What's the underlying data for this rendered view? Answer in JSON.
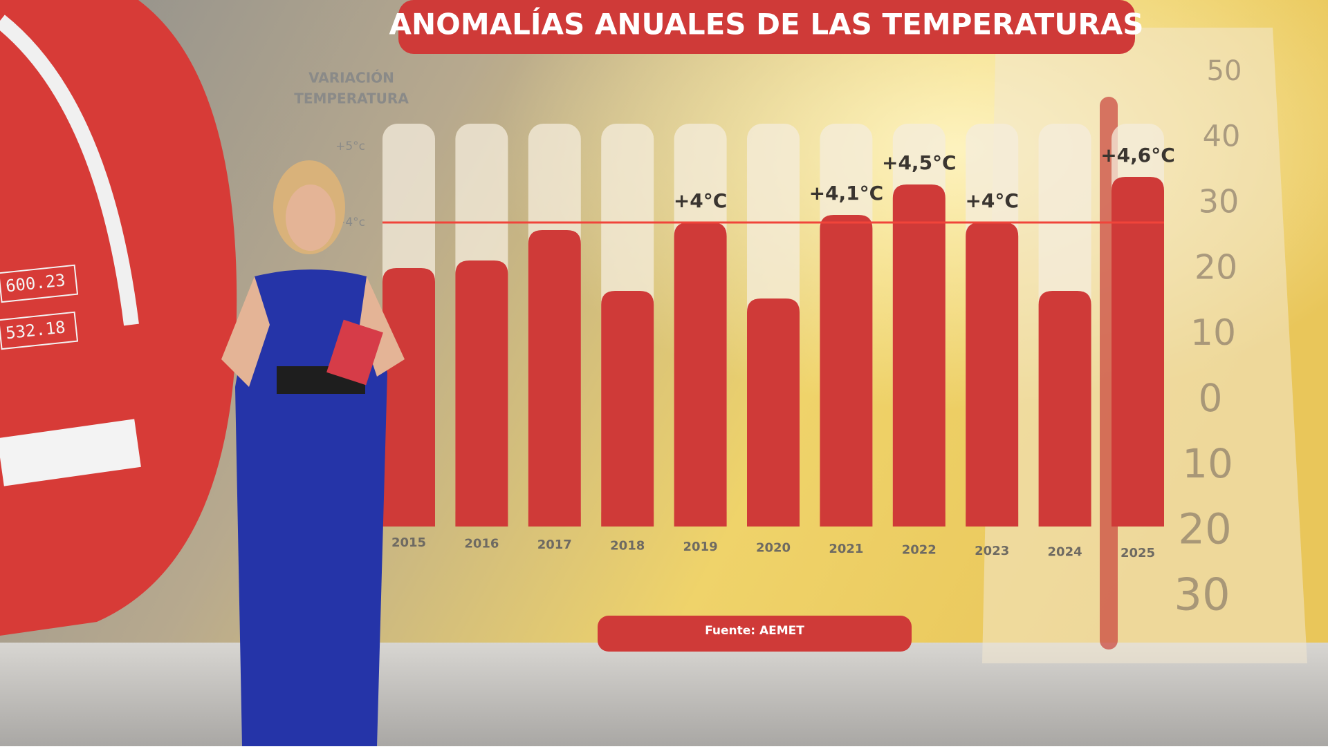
{
  "chart_data": {
    "type": "bar",
    "title": "ANOMALÍAS ANUALES DE LAS TEMPERATURAS",
    "y_label": [
      "VARIACIÓN",
      "TEMPERATURA"
    ],
    "source": "Fuente: AEMET",
    "categories": [
      "2015",
      "2016",
      "2017",
      "2018",
      "2019",
      "2020",
      "2021",
      "2022",
      "2023",
      "2024",
      "2025"
    ],
    "values": [
      3.4,
      3.5,
      3.9,
      3.1,
      4,
      3.0,
      4.1,
      4.5,
      4,
      3.1,
      4.6
    ],
    "value_labels": [
      null,
      null,
      null,
      null,
      "+4°C",
      null,
      "+4,1°C",
      "+4,5°C",
      "+4°C",
      null,
      "+4,6°C"
    ],
    "color": "#cf3a38",
    "ylim": [
      0,
      5.3
    ],
    "yticks": [
      {
        "value": 5,
        "label": "+5°c"
      },
      {
        "value": 4,
        "label": "+4°c"
      }
    ],
    "reference_line": {
      "value": 4,
      "color": "#f0443a"
    }
  },
  "background": {
    "screen_numbers": [
      "600.23",
      "532.18"
    ],
    "thermometer_labels": [
      "50",
      "40",
      "30",
      "20",
      "10",
      "0",
      "10",
      "20",
      "30"
    ]
  }
}
